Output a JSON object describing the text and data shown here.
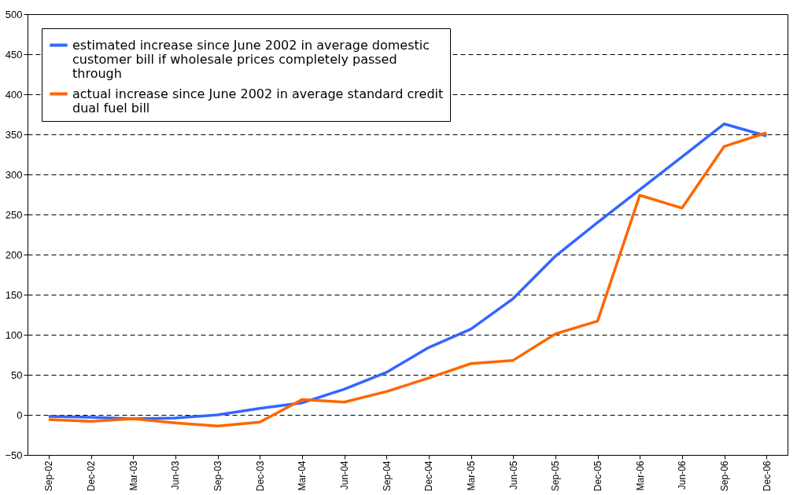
{
  "chart_data": {
    "type": "line",
    "categories": [
      "Sep-02",
      "Dec-02",
      "Mar-03",
      "Jun-03",
      "Sep-03",
      "Dec-03",
      "Mar-04",
      "Jun-04",
      "Sep-04",
      "Dec-04",
      "Mar-05",
      "Jun-05",
      "Sep-05",
      "Dec-05",
      "Mar-06",
      "Jun-06",
      "Sep-06",
      "Dec-06"
    ],
    "series": [
      {
        "name": "estimated increase since June 2002 in average domestic customer bill if wholesale prices completely passed through",
        "color": "#3366ff",
        "values": [
          -2,
          -3,
          -5,
          -4,
          0,
          8,
          15,
          32,
          53,
          84,
          107,
          145,
          198,
          240,
          281,
          322,
          363,
          348
        ]
      },
      {
        "name": "actual increase since June 2002 in average standard credit dual fuel bill",
        "color": "#ff6600",
        "values": [
          -6,
          -8,
          -5,
          -10,
          -14,
          -9,
          19,
          16,
          29,
          46,
          64,
          68,
          101,
          117,
          274,
          258,
          335,
          352
        ]
      }
    ],
    "ylim": [
      -50,
      500
    ],
    "yticks": [
      -50,
      0,
      50,
      100,
      150,
      200,
      250,
      300,
      350,
      400,
      450,
      500
    ],
    "grid": "y",
    "legend": "top left",
    "line_style": "solid",
    "marker": "none"
  }
}
